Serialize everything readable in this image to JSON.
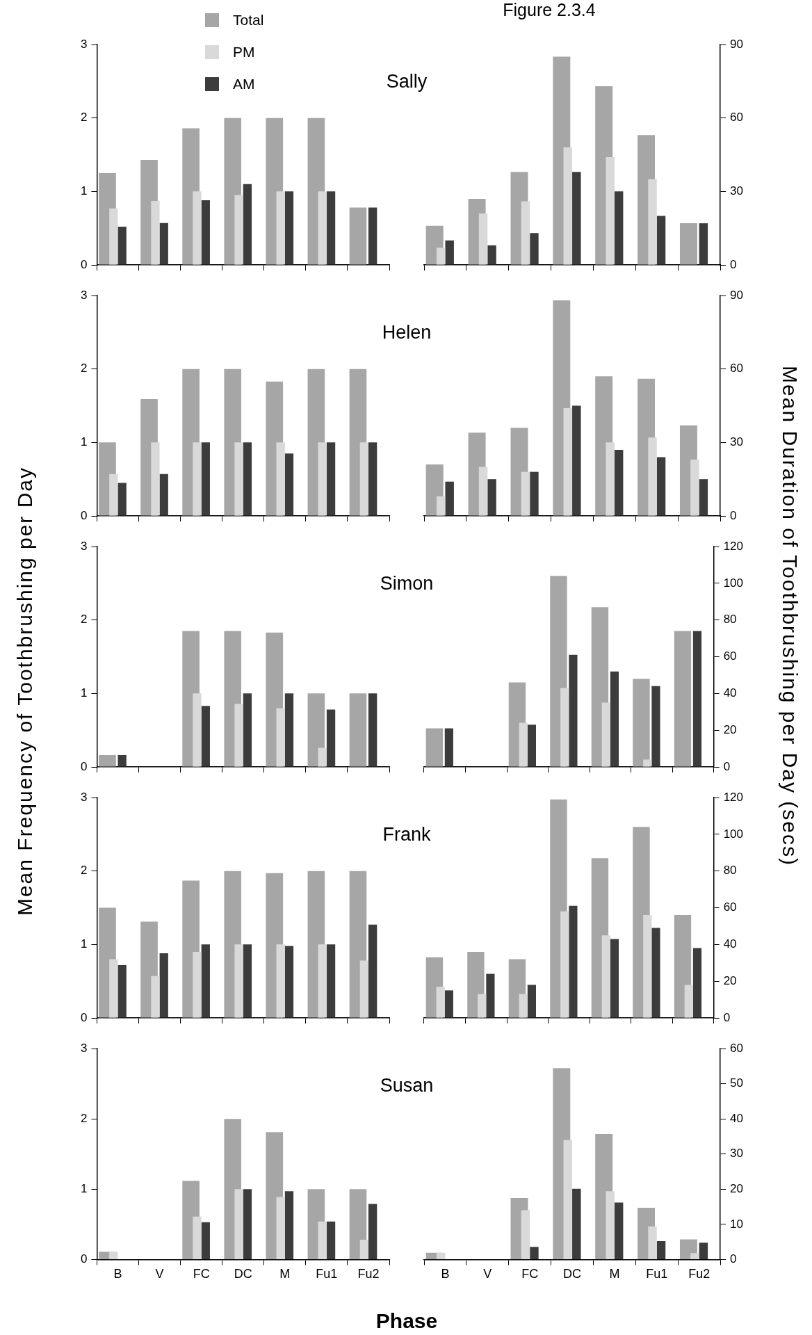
{
  "chart_data": [
    {
      "type": "bar",
      "title": "Sally",
      "categories": [
        null,
        null,
        null,
        null,
        null,
        null,
        null
      ],
      "ylim": [
        0,
        3
      ],
      "yticks": [
        0,
        1,
        2,
        3
      ],
      "tick_labels": "y",
      "legend": "top left",
      "series": [
        {
          "name": "Total",
          "color": "#a6a6a6",
          "values": [
            1.25,
            1.43,
            1.86,
            2.0,
            2.0,
            2.0,
            0.78
          ]
        },
        {
          "name": "PM",
          "color": "#d9d9d9",
          "values": [
            0.77,
            0.87,
            1.0,
            0.95,
            1.0,
            1.0,
            0
          ]
        },
        {
          "name": "AM",
          "color": "#3c3c3c",
          "values": [
            0.52,
            0.57,
            0.88,
            1.1,
            1.0,
            1.0,
            0.78
          ]
        }
      ]
    },
    {
      "type": "bar",
      "title": "Figure 2.3.4",
      "categories": [
        null,
        null,
        null,
        null,
        null,
        null,
        null
      ],
      "y2lim": [
        0,
        90
      ],
      "y2ticks": [
        0,
        30,
        60,
        90
      ],
      "tick_labels": "y",
      "series": [
        {
          "color": "#a6a6a6",
          "axis": "y2",
          "values": [
            16,
            27,
            38,
            85,
            73,
            53,
            17
          ]
        },
        {
          "color": "#d9d9d9",
          "axis": "y2",
          "values": [
            7,
            21,
            26,
            48,
            44,
            35,
            0
          ]
        },
        {
          "color": "#3c3c3c",
          "axis": "y2",
          "values": [
            10,
            8,
            13,
            38,
            30,
            20,
            17
          ]
        }
      ]
    },
    {
      "type": "bar",
      "title": "Helen",
      "categories": [
        null,
        null,
        null,
        null,
        null,
        null,
        null
      ],
      "ylim": [
        0,
        3
      ],
      "yticks": [
        0,
        1,
        2,
        3
      ],
      "tick_labels": "y",
      "series": [
        {
          "color": "#a6a6a6",
          "values": [
            1.0,
            1.59,
            2.0,
            2.0,
            1.83,
            2.0,
            2.0
          ]
        },
        {
          "color": "#d9d9d9",
          "values": [
            0.57,
            1.0,
            1.0,
            1.0,
            1.0,
            1.0,
            1.0
          ]
        },
        {
          "color": "#3c3c3c",
          "values": [
            0.45,
            0.57,
            1.0,
            1.0,
            0.85,
            1.0,
            1.0
          ]
        }
      ]
    },
    {
      "type": "bar",
      "categories": [
        null,
        null,
        null,
        null,
        null,
        null,
        null
      ],
      "y2lim": [
        0,
        90
      ],
      "y2ticks": [
        0,
        30,
        60,
        90
      ],
      "tick_labels": "y",
      "series": [
        {
          "color": "#a6a6a6",
          "axis": "y2",
          "values": [
            21,
            34,
            36,
            88,
            57,
            56,
            37
          ]
        },
        {
          "color": "#d9d9d9",
          "axis": "y2",
          "values": [
            8,
            20,
            18,
            44,
            30,
            32,
            23
          ]
        },
        {
          "color": "#3c3c3c",
          "axis": "y2",
          "values": [
            14,
            15,
            18,
            45,
            27,
            24,
            15
          ]
        }
      ]
    },
    {
      "type": "bar",
      "title": "Simon",
      "ylabel": "Mean Frequency of Toothbrushing per Day",
      "categories": [
        null,
        null,
        null,
        null,
        null,
        null,
        null
      ],
      "ylim": [
        0,
        3
      ],
      "yticks": [
        0,
        1,
        2,
        3
      ],
      "tick_labels": "y",
      "series": [
        {
          "color": "#a6a6a6",
          "values": [
            0.16,
            0,
            1.85,
            1.85,
            1.83,
            1.0,
            1.0
          ]
        },
        {
          "color": "#d9d9d9",
          "values": [
            0,
            0,
            1.0,
            0.86,
            0.8,
            0.26,
            0
          ]
        },
        {
          "color": "#3c3c3c",
          "values": [
            0.16,
            0,
            0.83,
            1.0,
            1.0,
            0.78,
            1.0
          ]
        }
      ]
    },
    {
      "type": "bar",
      "y2label": "Mean Duration of Toothbrushing per Day (secs)",
      "categories": [
        null,
        null,
        null,
        null,
        null,
        null,
        null
      ],
      "y2lim": [
        0,
        120
      ],
      "y2ticks": [
        0,
        20,
        40,
        60,
        80,
        100,
        120
      ],
      "tick_labels": "y",
      "series": [
        {
          "color": "#a6a6a6",
          "axis": "y2",
          "values": [
            21,
            0,
            46,
            104,
            87,
            48,
            74
          ]
        },
        {
          "color": "#d9d9d9",
          "axis": "y2",
          "values": [
            0,
            0,
            24,
            43,
            35,
            4,
            0
          ]
        },
        {
          "color": "#3c3c3c",
          "axis": "y2",
          "values": [
            21,
            0,
            23,
            61,
            52,
            44,
            74
          ]
        }
      ]
    },
    {
      "type": "bar",
      "title": "Frank",
      "categories": [
        null,
        null,
        null,
        null,
        null,
        null,
        null
      ],
      "ylim": [
        0,
        3
      ],
      "yticks": [
        0,
        1,
        2,
        3
      ],
      "tick_labels": "y",
      "series": [
        {
          "color": "#a6a6a6",
          "values": [
            1.5,
            1.31,
            1.87,
            2.0,
            1.97,
            2.0,
            2.0
          ]
        },
        {
          "color": "#d9d9d9",
          "values": [
            0.8,
            0.57,
            0.9,
            1.0,
            1.0,
            1.0,
            0.78
          ]
        },
        {
          "color": "#3c3c3c",
          "values": [
            0.72,
            0.88,
            1.0,
            1.0,
            0.98,
            1.0,
            1.27
          ]
        }
      ]
    },
    {
      "type": "bar",
      "categories": [
        null,
        null,
        null,
        null,
        null,
        null,
        null
      ],
      "y2lim": [
        0,
        120
      ],
      "y2ticks": [
        0,
        20,
        40,
        60,
        80,
        100,
        120
      ],
      "tick_labels": "y",
      "series": [
        {
          "color": "#a6a6a6",
          "axis": "y2",
          "values": [
            33,
            36,
            32,
            119,
            87,
            104,
            56
          ]
        },
        {
          "color": "#d9d9d9",
          "axis": "y2",
          "values": [
            17,
            13,
            13,
            58,
            45,
            56,
            18
          ]
        },
        {
          "color": "#3c3c3c",
          "axis": "y2",
          "values": [
            15,
            24,
            18,
            61,
            43,
            49,
            38
          ]
        }
      ]
    },
    {
      "type": "bar",
      "title": "Susan",
      "xlabel": "Phase",
      "categories": [
        "B",
        "V",
        "FC",
        "DC",
        "M",
        "Fu1",
        "Fu2"
      ],
      "ylim": [
        0,
        3
      ],
      "yticks": [
        0,
        1,
        2,
        3
      ],
      "series": [
        {
          "color": "#a6a6a6",
          "values": [
            0.11,
            0,
            1.12,
            2.0,
            1.81,
            1.0,
            1.0
          ]
        },
        {
          "color": "#d9d9d9",
          "values": [
            0.11,
            0,
            0.61,
            1.0,
            0.89,
            0.54,
            0.28
          ]
        },
        {
          "color": "#3c3c3c",
          "values": [
            0,
            0,
            0.53,
            1.0,
            0.97,
            0.54,
            0.79
          ]
        }
      ]
    },
    {
      "type": "bar",
      "categories": [
        "B",
        "V",
        "FC",
        "DC",
        "M",
        "Fu1",
        "Fu2"
      ],
      "y2lim": [
        0,
        60
      ],
      "y2ticks": [
        0,
        10,
        20,
        30,
        40,
        50,
        60
      ],
      "series": [
        {
          "color": "#a6a6a6",
          "axis": "y2",
          "values": [
            1.9,
            0,
            17.5,
            54.4,
            35.7,
            14.7,
            5.7
          ]
        },
        {
          "color": "#d9d9d9",
          "axis": "y2",
          "values": [
            1.9,
            0,
            14,
            34,
            19.4,
            9.4,
            1.8
          ]
        },
        {
          "color": "#3c3c3c",
          "axis": "y2",
          "values": [
            0,
            0,
            3.6,
            20.1,
            16.2,
            5.2,
            4.8
          ]
        }
      ]
    }
  ]
}
